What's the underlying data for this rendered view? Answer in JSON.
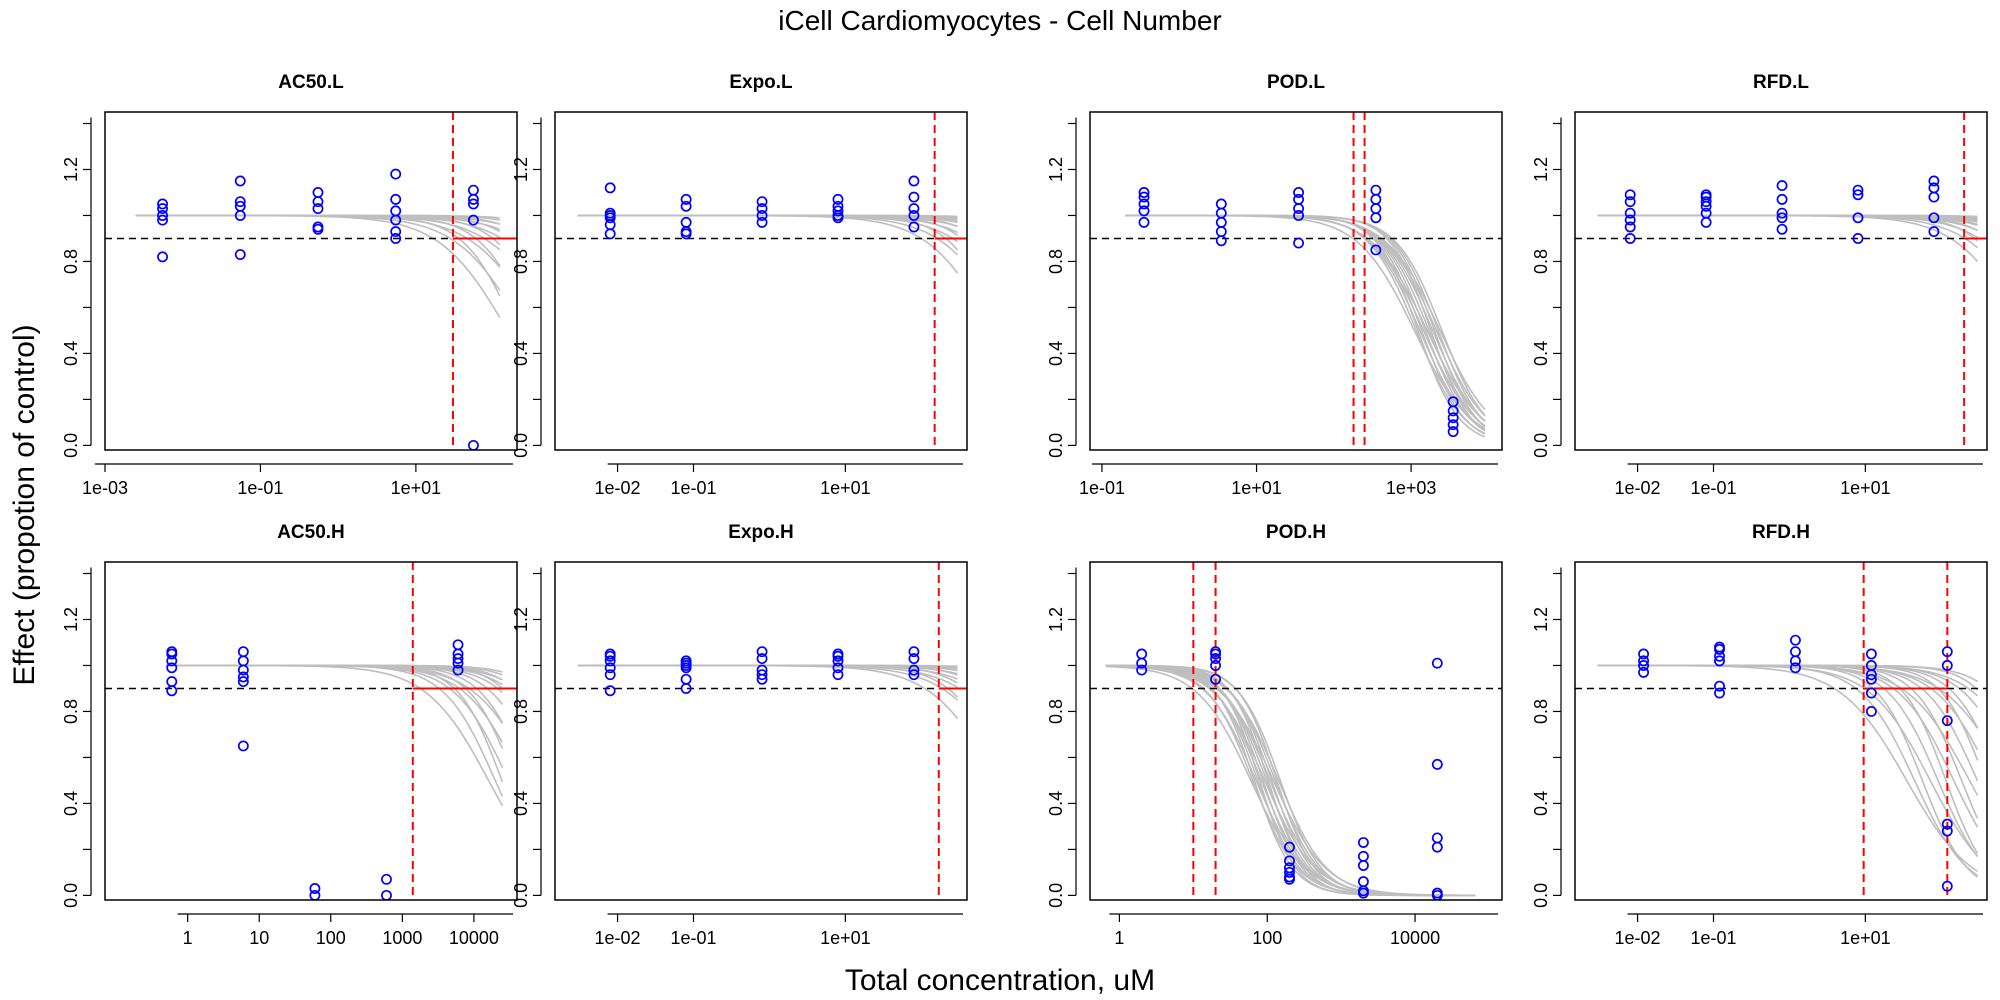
{
  "figure": {
    "title": "iCell Cardiomyocytes -  Cell Number",
    "xlabel": "Total concentration, uM",
    "ylabel": "Effect (propotion of control)"
  },
  "colors": {
    "points": "#0000ff",
    "curves": "#bebebe",
    "threshold_line": "#000000",
    "marker_lines": "#ff0000"
  },
  "chart_data": [
    {
      "type": "scatter",
      "title": "AC50.L",
      "xscale": "log",
      "xlim": [
        0.001,
        200
      ],
      "ylim": [
        -0.02,
        1.45
      ],
      "yticks": [
        0.0,
        0.4,
        0.8,
        1.2
      ],
      "xticks": [
        {
          "v": 0.001,
          "label": "1e-03"
        },
        {
          "v": 0.1,
          "label": "1e-01"
        },
        {
          "v": 10,
          "label": "1e+01"
        }
      ],
      "threshold": 0.9,
      "curves": {
        "x_start": 0.0025,
        "x_end": 120,
        "n": 14,
        "shape": "hill",
        "top": 1.0,
        "ac50_min": 150,
        "ac50_max": 4000,
        "hill_min": 1.0,
        "hill_max": 1.6
      },
      "points": [
        {
          "x": 0.0055,
          "y": [
            0.82,
            0.98,
            1.0,
            1.03,
            1.05
          ]
        },
        {
          "x": 0.055,
          "y": [
            0.83,
            1.0,
            1.04,
            1.06,
            1.15
          ]
        },
        {
          "x": 0.55,
          "y": [
            0.94,
            0.95,
            1.03,
            1.06,
            1.1
          ]
        },
        {
          "x": 5.5,
          "y": [
            0.9,
            0.93,
            0.98,
            1.02,
            1.07,
            1.18
          ]
        },
        {
          "x": 55,
          "y": [
            0.0,
            0.98,
            1.05,
            1.07,
            1.11
          ]
        }
      ],
      "vlines": [
        30
      ],
      "hsegment": {
        "from": 30,
        "y": 0.9
      }
    },
    {
      "type": "scatter",
      "title": "Expo.L",
      "xscale": "log",
      "xlim": [
        0.0015,
        400
      ],
      "ylim": [
        -0.02,
        1.45
      ],
      "yticks": [
        0.0,
        0.4,
        0.8,
        1.2
      ],
      "xticks": [
        {
          "v": 0.01,
          "label": "1e-02"
        },
        {
          "v": 0.1,
          "label": "1e-01"
        },
        {
          "v": 10,
          "label": "1e+01"
        }
      ],
      "threshold": 0.9,
      "curves": {
        "x_start": 0.003,
        "x_end": 300,
        "n": 14,
        "shape": "hill",
        "top": 1.0,
        "ac50_min": 900,
        "ac50_max": 20000,
        "hill_min": 1.0,
        "hill_max": 1.6
      },
      "points": [
        {
          "x": 0.008,
          "y": [
            0.92,
            0.96,
            0.99,
            1.0,
            1.01,
            1.12
          ]
        },
        {
          "x": 0.08,
          "y": [
            0.92,
            0.93,
            0.97,
            1.04,
            1.07
          ]
        },
        {
          "x": 0.8,
          "y": [
            0.97,
            1.0,
            1.03,
            1.06
          ]
        },
        {
          "x": 8,
          "y": [
            0.99,
            1.0,
            1.02,
            1.04,
            1.07
          ]
        },
        {
          "x": 80,
          "y": [
            0.95,
            1.0,
            1.03,
            1.08,
            1.15
          ]
        }
      ],
      "vlines": [
        150
      ],
      "hsegment": {
        "from": 150,
        "y": 0.9
      }
    },
    {
      "type": "scatter",
      "title": "POD.L",
      "xscale": "log",
      "xlim": [
        0.07,
        15000
      ],
      "ylim": [
        -0.02,
        1.45
      ],
      "yticks": [
        0.0,
        0.4,
        0.8,
        1.2
      ],
      "xticks": [
        {
          "v": 0.1,
          "label": "1e-01"
        },
        {
          "v": 10,
          "label": "1e+01"
        },
        {
          "v": 1000,
          "label": "1e+03"
        }
      ],
      "threshold": 0.9,
      "curves": {
        "x_start": 0.2,
        "x_end": 9000,
        "n": 16,
        "shape": "hill",
        "top": 1.0,
        "ac50_min": 1100,
        "ac50_max": 2500,
        "hill_min": 1.2,
        "hill_max": 1.7
      },
      "points": [
        {
          "x": 0.35,
          "y": [
            0.97,
            1.02,
            1.05,
            1.08,
            1.1
          ]
        },
        {
          "x": 3.5,
          "y": [
            0.89,
            0.93,
            0.97,
            1.01,
            1.05
          ]
        },
        {
          "x": 35,
          "y": [
            0.88,
            1.0,
            1.03,
            1.07,
            1.1
          ]
        },
        {
          "x": 350,
          "y": [
            0.85,
            0.99,
            1.03,
            1.07,
            1.11
          ]
        },
        {
          "x": 3500,
          "y": [
            0.06,
            0.09,
            0.12,
            0.15,
            0.19
          ]
        }
      ],
      "vlines": [
        180,
        250
      ],
      "hsegment": null
    },
    {
      "type": "scatter",
      "title": "RFD.L",
      "xscale": "log",
      "xlim": [
        0.0015,
        400
      ],
      "ylim": [
        -0.02,
        1.45
      ],
      "yticks": [
        0.0,
        0.4,
        0.8,
        1.2
      ],
      "xticks": [
        {
          "v": 0.01,
          "label": "1e-02"
        },
        {
          "v": 0.1,
          "label": "1e-01"
        },
        {
          "v": 10,
          "label": "1e+01"
        }
      ],
      "threshold": 0.9,
      "curves": {
        "x_start": 0.003,
        "x_end": 300,
        "n": 14,
        "shape": "hill",
        "top": 1.0,
        "ac50_min": 1200,
        "ac50_max": 20000,
        "hill_min": 1.0,
        "hill_max": 1.6
      },
      "points": [
        {
          "x": 0.008,
          "y": [
            0.9,
            0.95,
            0.98,
            1.01,
            1.06,
            1.09
          ]
        },
        {
          "x": 0.08,
          "y": [
            0.97,
            1.01,
            1.04,
            1.06,
            1.08,
            1.09
          ]
        },
        {
          "x": 0.8,
          "y": [
            0.94,
            0.99,
            1.01,
            1.07,
            1.13
          ]
        },
        {
          "x": 8,
          "y": [
            0.9,
            0.99,
            1.09,
            1.11
          ]
        },
        {
          "x": 80,
          "y": [
            0.93,
            0.99,
            1.08,
            1.12,
            1.15
          ]
        }
      ],
      "vlines": [
        200
      ],
      "hsegment": {
        "from": 200,
        "y": 0.9
      }
    },
    {
      "type": "scatter",
      "title": "AC50.H",
      "xscale": "log",
      "xlim": [
        0.07,
        40000
      ],
      "ylim": [
        -0.02,
        1.45
      ],
      "yticks": [
        0.0,
        0.4,
        0.8,
        1.2
      ],
      "xticks": [
        {
          "v": 1,
          "label": "1"
        },
        {
          "v": 10,
          "label": "10"
        },
        {
          "v": 100,
          "label": "100"
        },
        {
          "v": 1000,
          "label": "1000"
        },
        {
          "v": 10000,
          "label": "10000"
        }
      ],
      "threshold": 0.9,
      "curves": {
        "x_start": 0.5,
        "x_end": 25000,
        "n": 16,
        "shape": "hill",
        "top": 1.0,
        "ac50_min": 16000,
        "ac50_max": 400000,
        "hill_min": 1.0,
        "hill_max": 1.5
      },
      "points": [
        {
          "x": 0.6,
          "y": [
            0.89,
            0.93,
            0.99,
            1.02,
            1.05,
            1.06
          ]
        },
        {
          "x": 6,
          "y": [
            0.65,
            0.93,
            0.95,
            0.98,
            1.02,
            1.06
          ]
        },
        {
          "x": 60,
          "y": [
            0.0,
            0.03
          ]
        },
        {
          "x": 600,
          "y": [
            0.0,
            0.07
          ]
        },
        {
          "x": 6000,
          "y": [
            0.98,
            1.01,
            1.03,
            1.05,
            1.09
          ]
        }
      ],
      "vlines": [
        1400
      ],
      "hsegment": {
        "from": 1400,
        "y": 0.9
      }
    },
    {
      "type": "scatter",
      "title": "Expo.H",
      "xscale": "log",
      "xlim": [
        0.0015,
        400
      ],
      "ylim": [
        -0.02,
        1.45
      ],
      "yticks": [
        0.0,
        0.4,
        0.8,
        1.2
      ],
      "xticks": [
        {
          "v": 0.01,
          "label": "1e-02"
        },
        {
          "v": 0.1,
          "label": "1e-01"
        },
        {
          "v": 10,
          "label": "1e+01"
        }
      ],
      "threshold": 0.9,
      "curves": {
        "x_start": 0.003,
        "x_end": 300,
        "n": 14,
        "shape": "hill",
        "top": 1.0,
        "ac50_min": 1000,
        "ac50_max": 30000,
        "hill_min": 1.0,
        "hill_max": 1.5
      },
      "points": [
        {
          "x": 0.008,
          "y": [
            0.89,
            0.96,
            0.99,
            1.02,
            1.04,
            1.05
          ]
        },
        {
          "x": 0.08,
          "y": [
            0.9,
            0.94,
            0.99,
            1.0,
            1.01,
            1.02
          ]
        },
        {
          "x": 0.8,
          "y": [
            0.94,
            0.96,
            0.98,
            1.03,
            1.06
          ]
        },
        {
          "x": 8,
          "y": [
            0.96,
            0.99,
            1.02,
            1.04,
            1.05
          ]
        },
        {
          "x": 80,
          "y": [
            0.96,
            0.98,
            1.03,
            1.06
          ]
        }
      ],
      "vlines": [
        170
      ],
      "hsegment": {
        "from": 170,
        "y": 0.9
      }
    },
    {
      "type": "scatter",
      "title": "POD.H",
      "xscale": "log",
      "xlim": [
        0.4,
        150000
      ],
      "ylim": [
        -0.02,
        1.45
      ],
      "yticks": [
        0.0,
        0.4,
        0.8,
        1.2
      ],
      "xticks": [
        {
          "v": 1,
          "label": "1"
        },
        {
          "v": 100,
          "label": "100"
        },
        {
          "v": 10000,
          "label": "10000"
        }
      ],
      "threshold": 0.9,
      "curves": {
        "x_start": 0.65,
        "x_end": 65000,
        "n": 18,
        "shape": "hill",
        "top": 1.0,
        "ac50_min": 60,
        "ac50_max": 150,
        "hill_min": 1.2,
        "hill_max": 1.8
      },
      "points": [
        {
          "x": 2,
          "y": [
            0.98,
            1.01,
            1.05
          ]
        },
        {
          "x": 20,
          "y": [
            0.94,
            1.0,
            1.03,
            1.05,
            1.06
          ]
        },
        {
          "x": 200,
          "y": [
            0.07,
            0.08,
            0.1,
            0.12,
            0.15,
            0.21
          ]
        },
        {
          "x": 2000,
          "y": [
            0.01,
            0.02,
            0.06,
            0.13,
            0.17,
            0.23
          ]
        },
        {
          "x": 20000,
          "y": [
            0.0,
            0.01,
            0.21,
            0.25,
            0.57,
            1.01
          ]
        }
      ],
      "vlines": [
        10,
        20
      ],
      "hsegment": null
    },
    {
      "type": "scatter",
      "title": "RFD.H",
      "xscale": "log",
      "xlim": [
        0.0015,
        400
      ],
      "ylim": [
        -0.02,
        1.45
      ],
      "yticks": [
        0.0,
        0.4,
        0.8,
        1.2
      ],
      "xticks": [
        {
          "v": 0.01,
          "label": "1e-02"
        },
        {
          "v": 0.1,
          "label": "1e-01"
        },
        {
          "v": 10,
          "label": "1e+01"
        }
      ],
      "threshold": 0.9,
      "curves": {
        "x_start": 0.003,
        "x_end": 300,
        "n": 18,
        "shape": "hill",
        "top": 1.0,
        "ac50_min": 35,
        "ac50_max": 2000,
        "hill_min": 1.0,
        "hill_max": 1.6
      },
      "points": [
        {
          "x": 0.012,
          "y": [
            0.97,
            1.0,
            1.02,
            1.05
          ]
        },
        {
          "x": 0.12,
          "y": [
            0.88,
            0.91,
            1.02,
            1.04,
            1.07,
            1.08
          ]
        },
        {
          "x": 1.2,
          "y": [
            0.99,
            1.02,
            1.06,
            1.11
          ]
        },
        {
          "x": 12,
          "y": [
            0.8,
            0.88,
            0.94,
            0.96,
            1.0,
            1.05
          ]
        },
        {
          "x": 120,
          "y": [
            0.04,
            0.28,
            0.31,
            0.76,
            1.0,
            1.06
          ]
        }
      ],
      "vlines": [
        9.5,
        120
      ],
      "hsegment": {
        "from": 9.5,
        "to": 120,
        "y": 0.9
      }
    }
  ]
}
